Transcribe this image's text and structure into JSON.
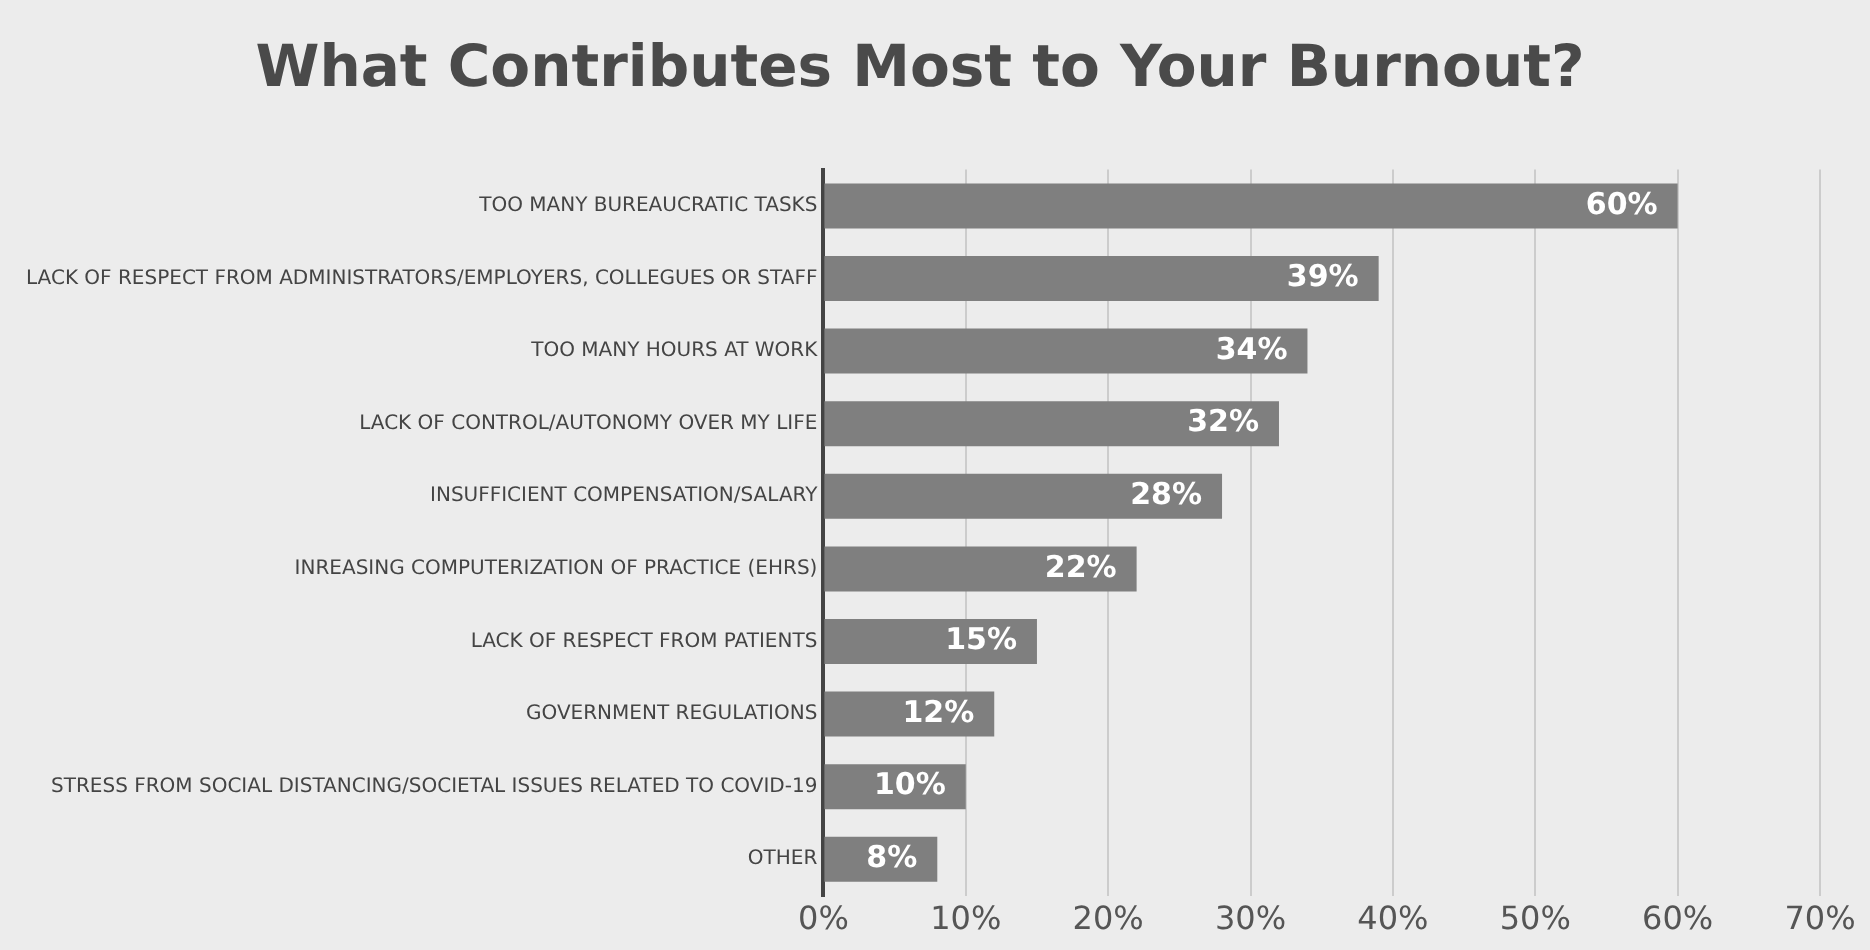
{
  "chart_data": {
    "type": "bar",
    "orientation": "horizontal",
    "title": "What Contributes Most to Your Burnout?",
    "categories": [
      "TOO MANY BUREAUCRATIC TASKS",
      "LACK OF RESPECT FROM ADMINISTRATORS/EMPLOYERS, COLLEGUES OR STAFF",
      "TOO MANY HOURS AT WORK",
      "LACK OF CONTROL/AUTONOMY OVER MY LIFE",
      "INSUFFICIENT COMPENSATION/SALARY",
      "INREASING COMPUTERIZATION OF PRACTICE (EHRS)",
      "LACK OF RESPECT FROM PATIENTS",
      "GOVERNMENT REGULATIONS",
      "STRESS FROM SOCIAL DISTANCING/SOCIETAL ISSUES RELATED TO COVID-19",
      "OTHER"
    ],
    "values": [
      60,
      39,
      34,
      32,
      28,
      22,
      15,
      12,
      10,
      8
    ],
    "value_labels": [
      "60%",
      "39%",
      "34%",
      "32%",
      "28%",
      "22%",
      "15%",
      "12%",
      "10%",
      "8%"
    ],
    "color": "#7f7f7f",
    "xlim": [
      0,
      70
    ],
    "xticks": [
      {
        "value": 0,
        "label": "0%"
      },
      {
        "value": 10,
        "label": "10%"
      },
      {
        "value": 20,
        "label": "20%"
      },
      {
        "value": 30,
        "label": "30%"
      },
      {
        "value": 40,
        "label": "40%"
      },
      {
        "value": 50,
        "label": "50%"
      },
      {
        "value": 60,
        "label": "60%"
      },
      {
        "value": 70,
        "label": "70%"
      }
    ],
    "grid": "x",
    "legend": false
  }
}
